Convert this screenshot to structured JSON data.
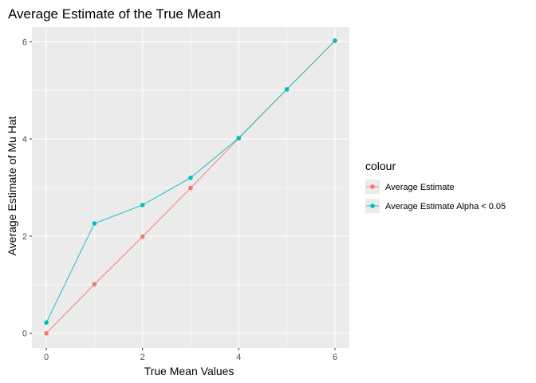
{
  "chart_data": {
    "type": "line",
    "title": "Average Estimate of the True Mean",
    "xlabel": "True Mean Values",
    "ylabel": "Average Estimate of Mu Hat",
    "xlim": [
      -0.3,
      6.3
    ],
    "ylim": [
      -0.3,
      6.3
    ],
    "x_ticks": [
      0,
      2,
      4,
      6
    ],
    "y_ticks": [
      0,
      2,
      4,
      6
    ],
    "grid": true,
    "legend": {
      "title": "colour",
      "position": "right"
    },
    "series": [
      {
        "name": "Average Estimate",
        "color": "#F8766D",
        "x": [
          0,
          1,
          2,
          3,
          4,
          5,
          6
        ],
        "y": [
          0.0,
          1.01,
          1.99,
          2.99,
          4.01,
          5.02,
          6.02
        ]
      },
      {
        "name": "Average Estimate Alpha < 0.05",
        "color": "#00BFC4",
        "x": [
          0,
          1,
          2,
          3,
          4,
          5,
          6
        ],
        "y": [
          0.22,
          2.26,
          2.64,
          3.2,
          4.02,
          5.02,
          6.02
        ]
      }
    ]
  },
  "colors": {
    "panel_background": "#EBEBEB",
    "grid_major": "#FFFFFF"
  }
}
